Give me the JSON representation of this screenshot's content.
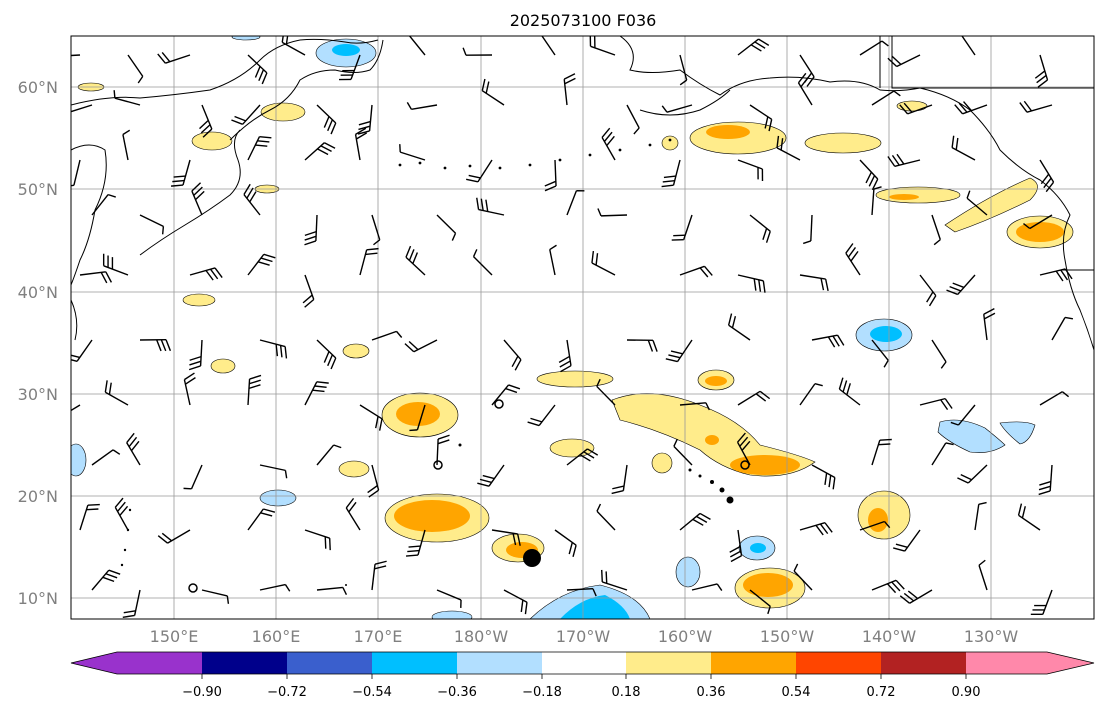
{
  "map": {
    "title": "2025073100 F036",
    "lat_labels": [
      "60°N",
      "50°N",
      "40°N",
      "30°N",
      "20°N",
      "10°N"
    ],
    "lon_labels": [
      "150°E",
      "160°E",
      "170°E",
      "180°W",
      "170°W",
      "160°W",
      "150°W",
      "140°W",
      "130°W"
    ],
    "extent": {
      "lon_min": 140,
      "lon_max": 240,
      "lat_min": 8,
      "lat_max": 65
    }
  },
  "colorbar": {
    "tick_labels": [
      "−0.90",
      "−0.72",
      "−0.54",
      "−0.36",
      "−0.18",
      "0.18",
      "0.36",
      "0.54",
      "0.72",
      "0.90"
    ],
    "colors": [
      "#9932CC",
      "#00008B",
      "#3A5FCD",
      "#00BFFF",
      "#B2DFFF",
      "#FFFFFF",
      "#FFEC8B",
      "#FFA500",
      "#FF4500",
      "#B22222",
      "#FF88AA"
    ]
  },
  "colors": {
    "positive_light": "#FFEC8B",
    "positive_mid": "#FFA500",
    "negative_light": "#B2DFFF",
    "negative_mid": "#00BFFF"
  }
}
